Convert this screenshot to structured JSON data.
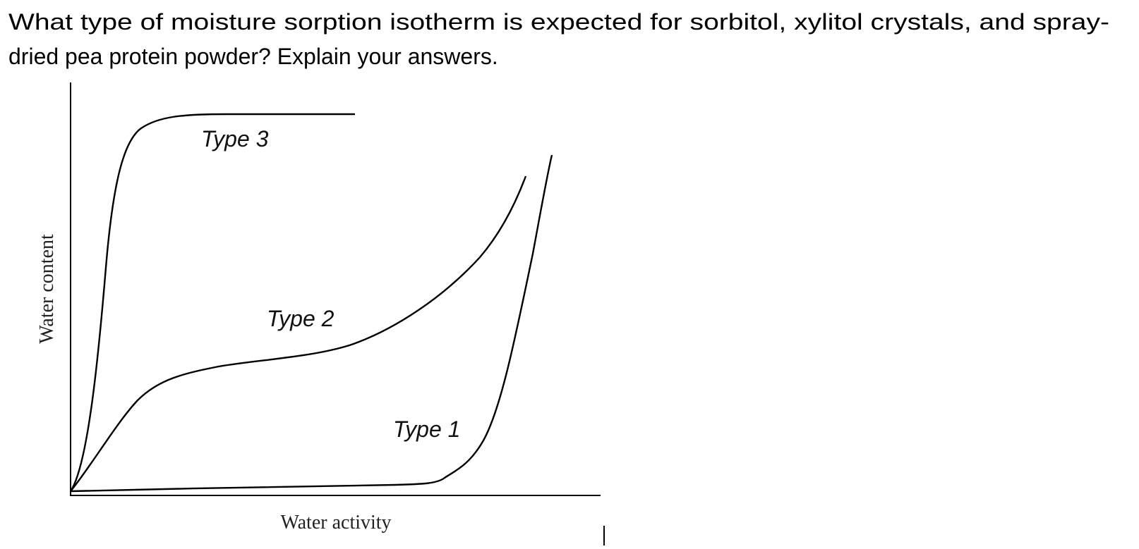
{
  "question": {
    "lines": [
      "What type of moisture sorption isotherm is expected for sorbitol, xylitol crystals, and spray-",
      "dried pea protein powder? Explain your answers."
    ]
  },
  "figure": {
    "curve_labels": [
      "Type 3",
      "Type 2",
      "Type 1"
    ],
    "x_axis_label": "Water activity",
    "y_axis_label": "Water content"
  }
}
